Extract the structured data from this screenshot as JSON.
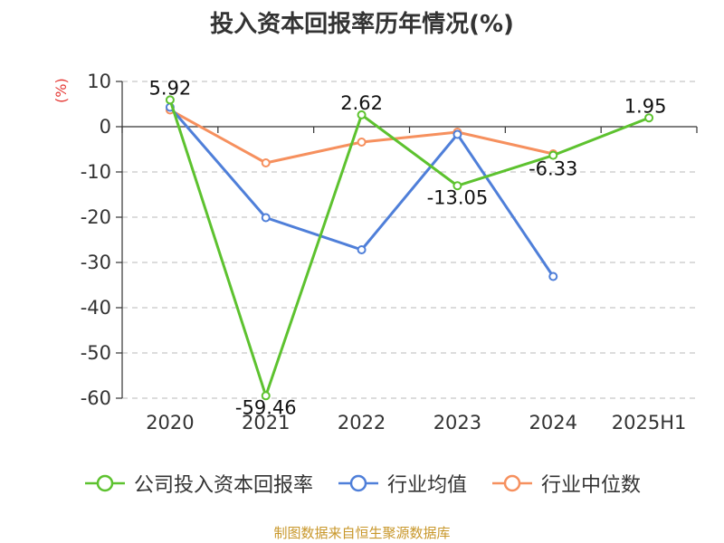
{
  "chart_data": {
    "type": "line",
    "title": "投入资本回报率历年情况(%)",
    "unit_label": "(%)",
    "categories": [
      "2020",
      "2021",
      "2022",
      "2023",
      "2024",
      "2025H1"
    ],
    "ylim": [
      -60,
      10
    ],
    "yticks": [
      10,
      0,
      -10,
      -20,
      -30,
      -40,
      -50,
      -60
    ],
    "grid": true,
    "legend_position": "bottom",
    "series": [
      {
        "name": "公司投入资本回报率",
        "color": "#5dc22f",
        "values": [
          5.92,
          -59.46,
          2.62,
          -13.05,
          -6.33,
          1.95
        ],
        "labels": [
          "5.92",
          "-59.46",
          "2.62",
          "-13.05",
          "-6.33",
          "1.95"
        ]
      },
      {
        "name": "行业均值",
        "color": "#4f7fd9",
        "values": [
          4.3,
          -20.1,
          -27.2,
          -1.7,
          -33.1,
          null
        ]
      },
      {
        "name": "行业中位数",
        "color": "#f6905e",
        "values": [
          3.7,
          -8.0,
          -3.4,
          -1.2,
          -6.0,
          null
        ]
      }
    ],
    "source": "制图数据来自恒生聚源数据库"
  }
}
